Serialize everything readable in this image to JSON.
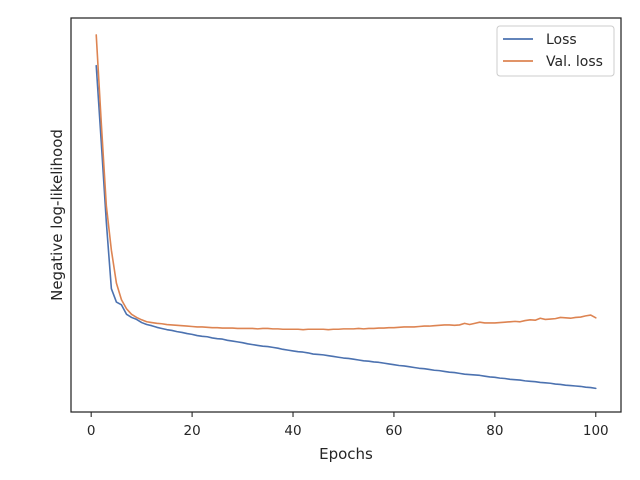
{
  "chart_data": {
    "type": "line",
    "title": "",
    "xlabel": "Epochs",
    "ylabel": "Negative log-likelihood",
    "xlim": [
      -4,
      105
    ],
    "ylim": [
      0,
      1
    ],
    "xticks": [
      0,
      20,
      40,
      60,
      80,
      100
    ],
    "yticks": [],
    "grid": false,
    "legend_position": "top-right",
    "x_start": 1,
    "series": [
      {
        "name": "Loss",
        "color": "#4c72b0",
        "values": [
          0.879,
          0.684,
          0.482,
          0.313,
          0.279,
          0.272,
          0.248,
          0.24,
          0.235,
          0.227,
          0.222,
          0.219,
          0.215,
          0.212,
          0.209,
          0.207,
          0.204,
          0.202,
          0.199,
          0.197,
          0.194,
          0.192,
          0.191,
          0.188,
          0.186,
          0.185,
          0.182,
          0.18,
          0.178,
          0.176,
          0.173,
          0.171,
          0.169,
          0.167,
          0.166,
          0.164,
          0.162,
          0.159,
          0.157,
          0.155,
          0.153,
          0.152,
          0.15,
          0.147,
          0.146,
          0.145,
          0.143,
          0.141,
          0.139,
          0.137,
          0.136,
          0.134,
          0.132,
          0.13,
          0.129,
          0.127,
          0.126,
          0.124,
          0.122,
          0.12,
          0.118,
          0.117,
          0.115,
          0.113,
          0.111,
          0.11,
          0.108,
          0.106,
          0.105,
          0.103,
          0.101,
          0.1,
          0.098,
          0.096,
          0.095,
          0.094,
          0.093,
          0.091,
          0.089,
          0.088,
          0.086,
          0.085,
          0.083,
          0.082,
          0.081,
          0.079,
          0.078,
          0.077,
          0.075,
          0.074,
          0.073,
          0.071,
          0.07,
          0.068,
          0.067,
          0.066,
          0.065,
          0.063,
          0.062,
          0.06
        ]
      },
      {
        "name": "Val. loss",
        "color": "#dd8452",
        "values": [
          0.957,
          0.734,
          0.524,
          0.411,
          0.327,
          0.285,
          0.262,
          0.248,
          0.24,
          0.234,
          0.229,
          0.227,
          0.225,
          0.224,
          0.222,
          0.221,
          0.22,
          0.219,
          0.218,
          0.217,
          0.216,
          0.216,
          0.215,
          0.214,
          0.214,
          0.213,
          0.213,
          0.213,
          0.212,
          0.212,
          0.212,
          0.212,
          0.211,
          0.212,
          0.212,
          0.211,
          0.211,
          0.21,
          0.21,
          0.21,
          0.21,
          0.209,
          0.21,
          0.21,
          0.21,
          0.21,
          0.209,
          0.21,
          0.21,
          0.211,
          0.211,
          0.211,
          0.212,
          0.211,
          0.212,
          0.212,
          0.213,
          0.213,
          0.214,
          0.214,
          0.215,
          0.216,
          0.216,
          0.216,
          0.217,
          0.218,
          0.218,
          0.219,
          0.22,
          0.221,
          0.221,
          0.22,
          0.221,
          0.225,
          0.222,
          0.225,
          0.228,
          0.226,
          0.226,
          0.226,
          0.227,
          0.228,
          0.229,
          0.23,
          0.229,
          0.232,
          0.234,
          0.233,
          0.238,
          0.235,
          0.236,
          0.237,
          0.24,
          0.239,
          0.238,
          0.24,
          0.241,
          0.244,
          0.246,
          0.239
        ]
      }
    ]
  }
}
